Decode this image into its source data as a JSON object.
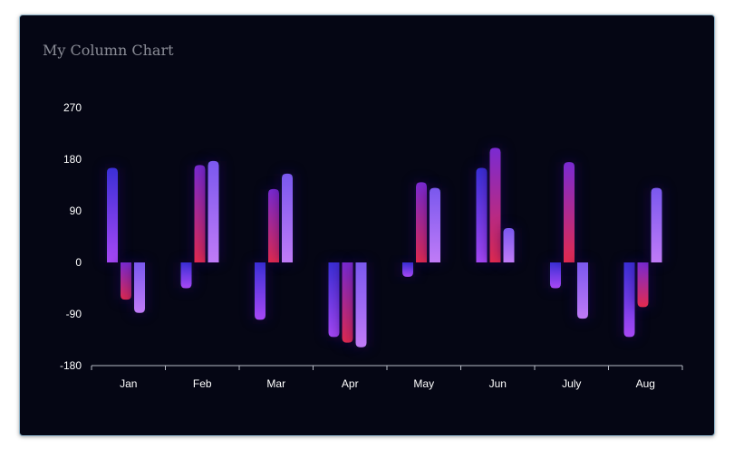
{
  "chart_data": {
    "type": "bar",
    "title": "My Column Chart",
    "categories": [
      "Jan",
      "Feb",
      "Mar",
      "Apr",
      "May",
      "Jun",
      "July",
      "Aug"
    ],
    "ylim": [
      -180,
      270
    ],
    "yticks": [
      "270",
      "180",
      "90",
      "0",
      "-90",
      "-180"
    ],
    "ytick_values": [
      270,
      180,
      90,
      0,
      -90,
      -180
    ],
    "grid": false,
    "legend": "none",
    "series": [
      {
        "values": [
          165,
          -45,
          -100,
          -130,
          -25,
          165,
          -45,
          -130
        ]
      },
      {
        "values": [
          -65,
          170,
          128,
          -140,
          140,
          200,
          175,
          -78
        ]
      },
      {
        "values": [
          -88,
          177,
          155,
          -148,
          130,
          60,
          -98,
          130
        ]
      }
    ],
    "colors": {
      "series1_top": "#3b2fd6",
      "series1_bottom": "#a748f5",
      "series2_top": "#7a2ad2",
      "series2_bottom": "#e22a4e",
      "series3_top": "#7a58ee",
      "series3_bottom": "#c07bf7",
      "background": "#050614",
      "axis": "#b8bcc6"
    }
  }
}
